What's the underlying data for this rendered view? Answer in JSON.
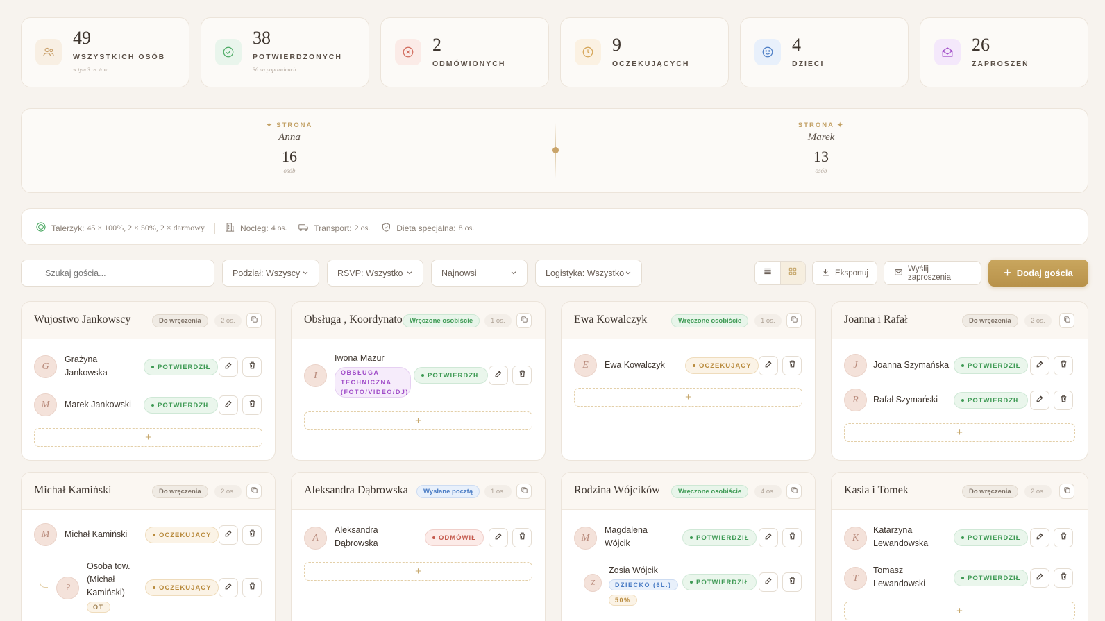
{
  "stats": [
    {
      "value": "49",
      "label": "WSZYSTKICH OSÓB",
      "sub": "w tym 3 os. tow."
    },
    {
      "value": "38",
      "label": "POTWIERDZONYCH",
      "sub": "36 na poprawinach"
    },
    {
      "value": "2",
      "label": "ODMÓWIONYCH",
      "sub": ""
    },
    {
      "value": "9",
      "label": "OCZEKUJĄCYCH",
      "sub": ""
    },
    {
      "value": "4",
      "label": "DZIECI",
      "sub": ""
    },
    {
      "value": "26",
      "label": "ZAPROSZEŃ",
      "sub": ""
    }
  ],
  "sides": {
    "left": {
      "title": "✦ STRONA",
      "name": "Anna",
      "count": "16",
      "unit": "osób"
    },
    "right": {
      "title": "STRONA ✦",
      "name": "Marek",
      "count": "13",
      "unit": "osób"
    }
  },
  "logistics": {
    "plates_label": "Talerzyk:",
    "plates_value": "45 × 100%, 2 × 50%, 2 × darmowy",
    "lodging_label": "Nocleg:",
    "lodging_value": "4 os.",
    "transport_label": "Transport:",
    "transport_value": "2 os.",
    "diet_label": "Dieta specjalna:",
    "diet_value": "8 os."
  },
  "toolbar": {
    "search_placeholder": "Szukaj gościa...",
    "filter_split": "Podział: Wszyscy",
    "filter_rsvp": "RSVP: Wszystko",
    "sort": "Najnowsi",
    "filter_logistics": "Logistyka: Wszystko",
    "export": "Eksportuj",
    "send": "Wyślij zaproszenia",
    "add": "Dodaj gościa"
  },
  "groups": [
    {
      "title": "Wujostwo Jankowscy",
      "tag": "Do wręczenia",
      "count": "2 os.",
      "guests": [
        {
          "initial": "G",
          "name1": "Grażyna",
          "name2": "Jankowska",
          "status": "POTWIERDZIŁ"
        },
        {
          "initial": "M",
          "name1": "Marek Jankowski",
          "status": "POTWIERDZIŁ"
        }
      ]
    },
    {
      "title": "Obsługa , Koordynato",
      "tag": "Wręczone osobiście",
      "count": "1 os.",
      "guests": [
        {
          "initial": "I",
          "name1": "Iwona Mazur",
          "role1": "OBSŁUGA",
          "role2": "TECHNICZNA",
          "role3": "(FOTO/VIDEO/DJ)",
          "status": "POTWIERDZIŁ"
        }
      ]
    },
    {
      "title": "Ewa Kowalczyk",
      "tag": "Wręczone osobiście",
      "count": "1 os.",
      "guests": [
        {
          "initial": "E",
          "name1": "Ewa Kowalczyk",
          "status": "OCZEKUJĄCY"
        }
      ]
    },
    {
      "title": "Joanna i Rafał",
      "tag": "Do wręczenia",
      "count": "2 os.",
      "guests": [
        {
          "initial": "J",
          "name1": "Joanna Szymańska",
          "status": "POTWIERDZIŁ"
        },
        {
          "initial": "R",
          "name1": "Rafał Szymański",
          "status": "POTWIERDZIŁ"
        }
      ]
    },
    {
      "title": "Michał Kamiński",
      "tag": "Do wręczenia",
      "count": "2 os.",
      "guests": [
        {
          "initial": "M",
          "name1": "Michał Kamiński",
          "status": "OCZEKUJĄCY"
        },
        {
          "initial": "?",
          "name1": "Osoba tow.",
          "name2": "(Michał",
          "name3": "Kamiński)",
          "badge": "OT",
          "status": "OCZEKUJĄCY"
        }
      ]
    },
    {
      "title": "Aleksandra Dąbrowska",
      "tag": "Wysłane pocztą",
      "count": "1 os.",
      "guests": [
        {
          "initial": "A",
          "name1": "Aleksandra",
          "name2": "Dąbrowska",
          "status": "ODMÓWIŁ"
        }
      ]
    },
    {
      "title": "Rodzina Wójcików",
      "tag": "Wręczone osobiście",
      "count": "4 os.",
      "guests": [
        {
          "initial": "M",
          "name1": "Magdalena",
          "name2": "Wójcik",
          "status": "POTWIERDZIŁ"
        },
        {
          "initial": "Z",
          "name1": "Zosia Wójcik",
          "badge": "DZIECKO (6L.)",
          "badge2": "50%",
          "status": "POTWIERDZIŁ"
        }
      ]
    },
    {
      "title": "Kasia i Tomek",
      "tag": "Do wręczenia",
      "count": "2 os.",
      "guests": [
        {
          "initial": "K",
          "name1": "Katarzyna",
          "name2": "Lewandowska",
          "status": "POTWIERDZIŁ"
        },
        {
          "initial": "T",
          "name1": "Tomasz",
          "name2": "Lewandowski",
          "status": "POTWIERDZIŁ"
        }
      ]
    }
  ],
  "add_symbol": "+"
}
